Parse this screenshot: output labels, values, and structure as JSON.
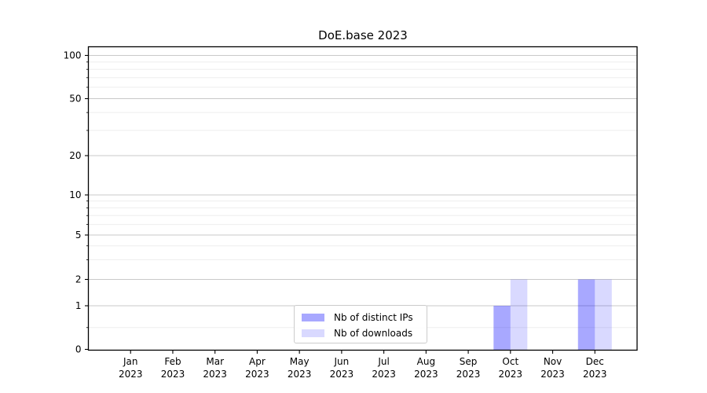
{
  "chart_data": {
    "type": "bar",
    "title": "DoE.base 2023",
    "categories": [
      {
        "month": "Jan",
        "year": "2023"
      },
      {
        "month": "Feb",
        "year": "2023"
      },
      {
        "month": "Mar",
        "year": "2023"
      },
      {
        "month": "Apr",
        "year": "2023"
      },
      {
        "month": "May",
        "year": "2023"
      },
      {
        "month": "Jun",
        "year": "2023"
      },
      {
        "month": "Jul",
        "year": "2023"
      },
      {
        "month": "Aug",
        "year": "2023"
      },
      {
        "month": "Sep",
        "year": "2023"
      },
      {
        "month": "Oct",
        "year": "2023"
      },
      {
        "month": "Nov",
        "year": "2023"
      },
      {
        "month": "Dec",
        "year": "2023"
      }
    ],
    "series": [
      {
        "name": "Nb of distinct IPs",
        "color": "rgba(0,0,255,0.34)",
        "values": [
          0,
          0,
          0,
          0,
          0,
          0,
          0,
          0,
          0,
          1,
          0,
          2
        ]
      },
      {
        "name": "Nb of downloads",
        "color": "rgba(0,0,255,0.15)",
        "values": [
          0,
          0,
          0,
          0,
          0,
          0,
          0,
          0,
          0,
          2,
          0,
          2
        ]
      }
    ],
    "y_axis": {
      "scale": "log-like",
      "major_ticks": [
        0,
        1,
        2,
        5,
        10,
        20,
        50,
        100
      ],
      "minor_ticks": [
        0.5,
        3,
        4,
        6,
        7,
        8,
        9,
        30,
        40,
        60,
        70,
        80,
        90
      ],
      "ylim": [
        0,
        115
      ]
    },
    "legend_position": "lower center",
    "grid": true,
    "colors": {
      "grid_major": "#c9c9c9",
      "grid_minor": "#eeeeee",
      "spine": "#000000",
      "text": "#000000",
      "background": "#ffffff"
    }
  }
}
